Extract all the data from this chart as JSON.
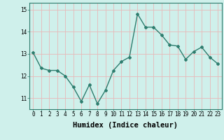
{
  "x": [
    0,
    1,
    2,
    3,
    4,
    5,
    6,
    7,
    8,
    9,
    10,
    11,
    12,
    13,
    14,
    15,
    16,
    17,
    18,
    19,
    20,
    21,
    22,
    23
  ],
  "y": [
    13.05,
    12.35,
    12.25,
    12.25,
    12.0,
    11.5,
    10.85,
    11.6,
    10.75,
    11.35,
    12.25,
    12.65,
    12.85,
    14.8,
    14.2,
    14.2,
    13.85,
    13.4,
    13.35,
    12.75,
    13.1,
    13.3,
    12.85,
    12.55
  ],
  "line_color": "#2e7d6e",
  "marker": "D",
  "marker_size": 2.0,
  "bg_color": "#cff0eb",
  "grid_color": "#e8b8b8",
  "xlabel": "Humidex (Indice chaleur)",
  "ylim": [
    10.5,
    15.3
  ],
  "yticks": [
    11,
    12,
    13,
    14,
    15
  ],
  "xticks": [
    0,
    1,
    2,
    3,
    4,
    5,
    6,
    7,
    8,
    9,
    10,
    11,
    12,
    13,
    14,
    15,
    16,
    17,
    18,
    19,
    20,
    21,
    22,
    23
  ],
  "tick_fontsize": 5.5,
  "xlabel_fontsize": 7.5,
  "line_width": 1.0
}
